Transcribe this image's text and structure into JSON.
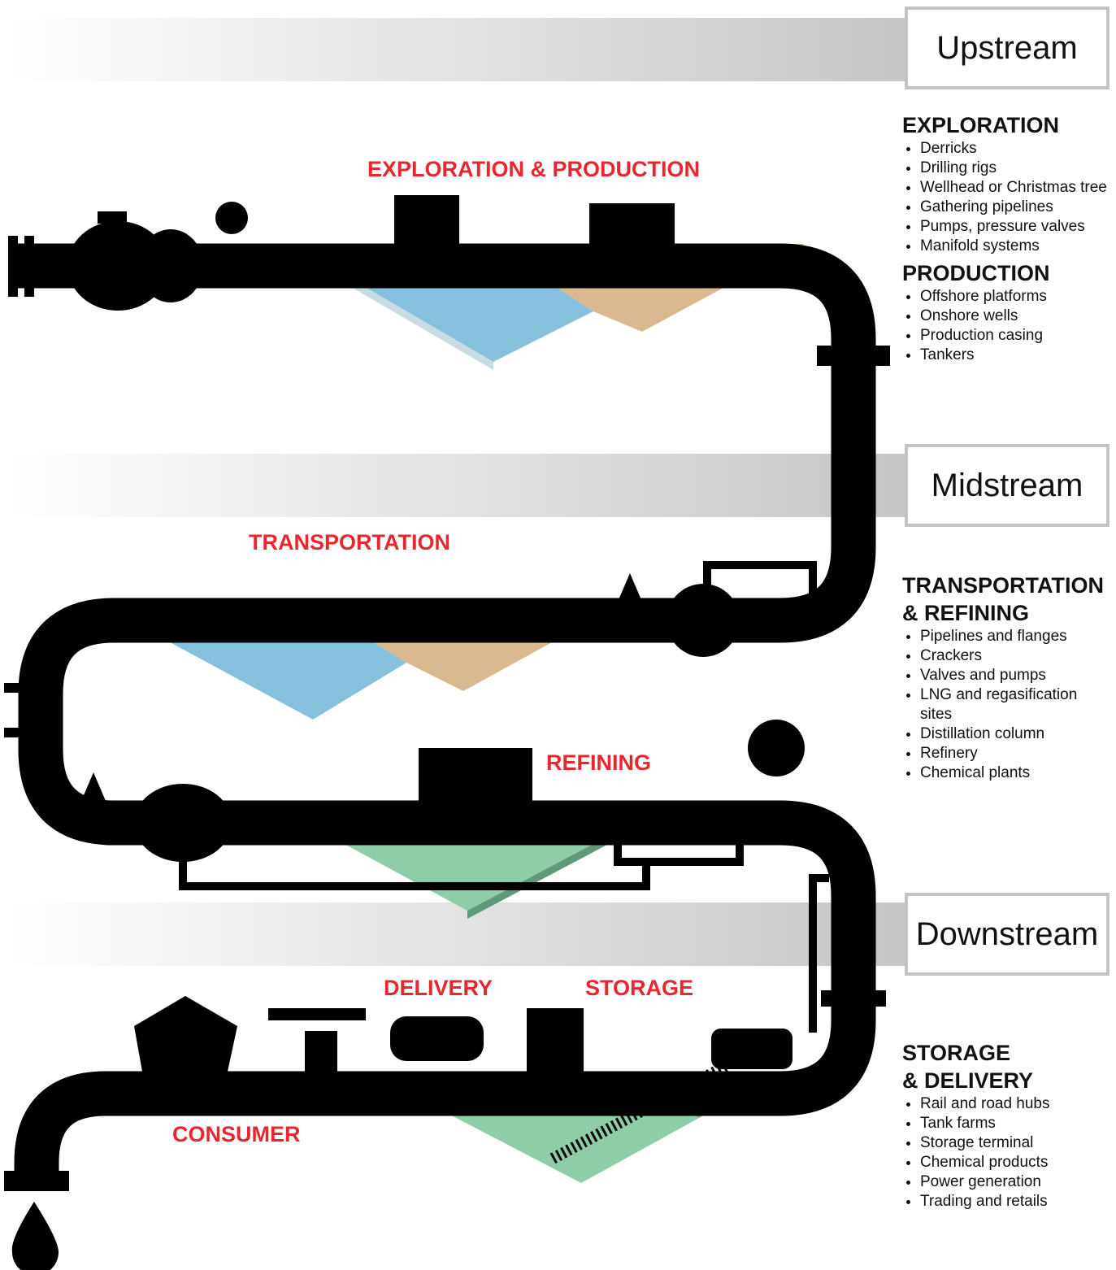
{
  "bands": [
    {
      "label": "Upstream"
    },
    {
      "label": "Midstream"
    },
    {
      "label": "Downstream"
    }
  ],
  "stages": [
    {
      "label": "EXPLORATION & PRODUCTION"
    },
    {
      "label": "TRANSPORTATION"
    },
    {
      "label": "REFINING"
    },
    {
      "label": "DELIVERY"
    },
    {
      "label": "STORAGE"
    },
    {
      "label": "CONSUMER"
    }
  ],
  "sections": [
    {
      "heading": [
        "EXPLORATION"
      ],
      "items": [
        "Derricks",
        "Drilling rigs",
        "Wellhead or Christmas tree",
        "Gathering pipelines",
        "Pumps, pressure valves",
        "Manifold systems"
      ]
    },
    {
      "heading": [
        "PRODUCTION"
      ],
      "items": [
        "Offshore platforms",
        "Onshore wells",
        "Production casing",
        "Tankers"
      ]
    },
    {
      "heading": [
        "TRANSPORTATION",
        "& REFINING"
      ],
      "items": [
        "Pipelines and flanges",
        "Crackers",
        "Valves and pumps",
        "LNG and regasification sites",
        "Distillation column",
        "Refinery",
        "Chemical plants"
      ]
    },
    {
      "heading": [
        "STORAGE",
        "& DELIVERY"
      ],
      "items": [
        "Rail and road hubs",
        "Tank farms",
        "Storage terminal",
        "Chemical products",
        "Power generation",
        "Trading and retails"
      ]
    }
  ]
}
